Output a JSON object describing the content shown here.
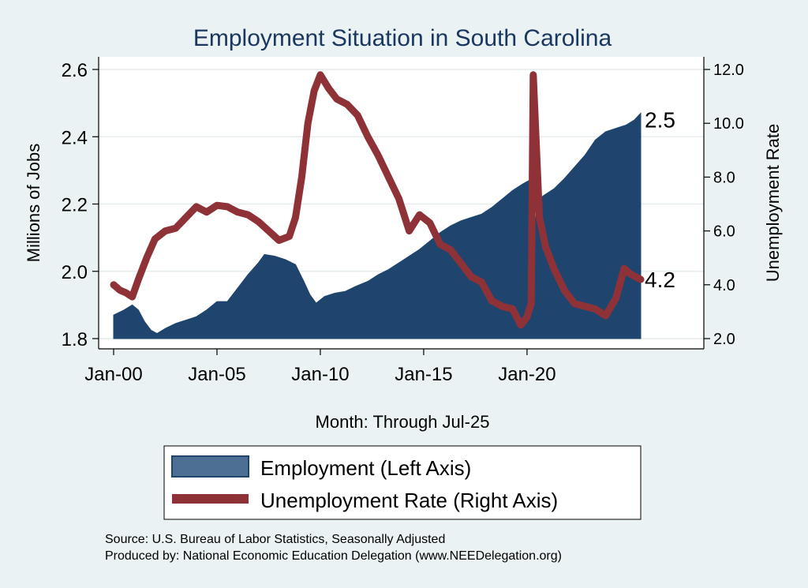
{
  "chart_data": {
    "type": "area+line",
    "title": "Employment Situation in South Carolina",
    "xlabel": "Month: Through Jul-25",
    "x_ticks": [
      "Jan-00",
      "Jan-05",
      "Jan-10",
      "Jan-15",
      "Jan-20"
    ],
    "x_range": [
      2000.0,
      2025.5
    ],
    "left_axis": {
      "label": "Millions of Jobs",
      "range": [
        1.8,
        2.6
      ],
      "ticks": [
        1.8,
        2.0,
        2.2,
        2.4,
        2.6
      ],
      "tick_labels": [
        "1.8",
        "2.0",
        "2.2",
        "2.4",
        "2.6"
      ]
    },
    "right_axis": {
      "label": "Unemployment Rate",
      "range": [
        2.0,
        12.0
      ],
      "ticks": [
        2.0,
        4.0,
        6.0,
        8.0,
        10.0,
        12.0
      ],
      "tick_labels": [
        "2.0",
        "4.0",
        "6.0",
        "8.0",
        "10.0",
        "12.0"
      ]
    },
    "series": [
      {
        "name": "Employment (Left Axis)",
        "axis": "left",
        "kind": "area",
        "color": "#1f456e",
        "points": [
          [
            2000.0,
            1.87
          ],
          [
            2000.5,
            1.885
          ],
          [
            2000.9,
            1.9
          ],
          [
            2001.2,
            1.885
          ],
          [
            2001.5,
            1.85
          ],
          [
            2001.8,
            1.825
          ],
          [
            2002.1,
            1.815
          ],
          [
            2002.5,
            1.83
          ],
          [
            2003.0,
            1.845
          ],
          [
            2003.5,
            1.855
          ],
          [
            2004.0,
            1.865
          ],
          [
            2004.5,
            1.885
          ],
          [
            2005.0,
            1.91
          ],
          [
            2005.5,
            1.91
          ],
          [
            2006.0,
            1.95
          ],
          [
            2006.5,
            1.99
          ],
          [
            2007.0,
            2.025
          ],
          [
            2007.3,
            2.05
          ],
          [
            2007.8,
            2.045
          ],
          [
            2008.3,
            2.035
          ],
          [
            2008.8,
            2.02
          ],
          [
            2009.2,
            1.97
          ],
          [
            2009.5,
            1.93
          ],
          [
            2009.8,
            1.905
          ],
          [
            2010.2,
            1.925
          ],
          [
            2010.7,
            1.935
          ],
          [
            2011.2,
            1.94
          ],
          [
            2011.7,
            1.955
          ],
          [
            2012.3,
            1.97
          ],
          [
            2012.8,
            1.99
          ],
          [
            2013.3,
            2.005
          ],
          [
            2013.8,
            2.025
          ],
          [
            2014.3,
            2.045
          ],
          [
            2014.8,
            2.065
          ],
          [
            2015.3,
            2.09
          ],
          [
            2015.8,
            2.115
          ],
          [
            2016.3,
            2.135
          ],
          [
            2016.8,
            2.15
          ],
          [
            2017.3,
            2.16
          ],
          [
            2017.8,
            2.17
          ],
          [
            2018.3,
            2.19
          ],
          [
            2018.8,
            2.215
          ],
          [
            2019.3,
            2.24
          ],
          [
            2019.8,
            2.26
          ],
          [
            2020.1,
            2.27
          ],
          [
            2020.25,
            2.04
          ],
          [
            2020.5,
            2.21
          ],
          [
            2020.8,
            2.225
          ],
          [
            2021.3,
            2.245
          ],
          [
            2021.8,
            2.275
          ],
          [
            2022.3,
            2.31
          ],
          [
            2022.8,
            2.345
          ],
          [
            2023.3,
            2.39
          ],
          [
            2023.8,
            2.415
          ],
          [
            2024.3,
            2.425
          ],
          [
            2024.8,
            2.435
          ],
          [
            2025.2,
            2.45
          ],
          [
            2025.5,
            2.47
          ]
        ],
        "end_label": "2.5"
      },
      {
        "name": "Unemployment Rate (Right Axis)",
        "axis": "right",
        "kind": "line",
        "color": "#8e3238",
        "points": [
          [
            2000.0,
            4.0
          ],
          [
            2000.3,
            3.8
          ],
          [
            2000.6,
            3.7
          ],
          [
            2000.9,
            3.55
          ],
          [
            2001.2,
            4.2
          ],
          [
            2001.6,
            5.0
          ],
          [
            2002.0,
            5.7
          ],
          [
            2002.5,
            6.0
          ],
          [
            2003.0,
            6.1
          ],
          [
            2003.5,
            6.5
          ],
          [
            2004.0,
            6.9
          ],
          [
            2004.5,
            6.7
          ],
          [
            2005.0,
            6.95
          ],
          [
            2005.5,
            6.9
          ],
          [
            2006.0,
            6.7
          ],
          [
            2006.5,
            6.6
          ],
          [
            2007.0,
            6.35
          ],
          [
            2007.5,
            6.0
          ],
          [
            2008.0,
            5.65
          ],
          [
            2008.5,
            5.8
          ],
          [
            2008.8,
            6.5
          ],
          [
            2009.1,
            8.0
          ],
          [
            2009.4,
            10.0
          ],
          [
            2009.7,
            11.2
          ],
          [
            2010.0,
            11.8
          ],
          [
            2010.4,
            11.3
          ],
          [
            2010.8,
            10.9
          ],
          [
            2011.3,
            10.7
          ],
          [
            2011.8,
            10.3
          ],
          [
            2012.3,
            9.5
          ],
          [
            2012.8,
            8.8
          ],
          [
            2013.3,
            8.0
          ],
          [
            2013.8,
            7.2
          ],
          [
            2014.3,
            6.0
          ],
          [
            2014.8,
            6.6
          ],
          [
            2015.3,
            6.3
          ],
          [
            2015.8,
            5.5
          ],
          [
            2016.3,
            5.3
          ],
          [
            2016.8,
            4.8
          ],
          [
            2017.3,
            4.3
          ],
          [
            2017.8,
            4.1
          ],
          [
            2018.3,
            3.4
          ],
          [
            2018.8,
            3.2
          ],
          [
            2019.3,
            3.1
          ],
          [
            2019.7,
            2.5
          ],
          [
            2020.0,
            2.8
          ],
          [
            2020.2,
            3.3
          ],
          [
            2020.3,
            11.8
          ],
          [
            2020.6,
            6.5
          ],
          [
            2020.9,
            5.4
          ],
          [
            2021.3,
            4.6
          ],
          [
            2021.8,
            3.8
          ],
          [
            2022.3,
            3.3
          ],
          [
            2022.8,
            3.2
          ],
          [
            2023.3,
            3.1
          ],
          [
            2023.8,
            2.85
          ],
          [
            2024.3,
            3.5
          ],
          [
            2024.7,
            4.6
          ],
          [
            2025.0,
            4.4
          ],
          [
            2025.5,
            4.2
          ]
        ],
        "end_label": "4.2"
      }
    ],
    "grid": true,
    "legend_position": "bottom"
  },
  "footer": {
    "source": "Source: U.S. Bureau of Labor Statistics, Seasonally Adjusted",
    "producer": "Produced by: National Economic Education Delegation (www.NEEDelegation.org)"
  }
}
